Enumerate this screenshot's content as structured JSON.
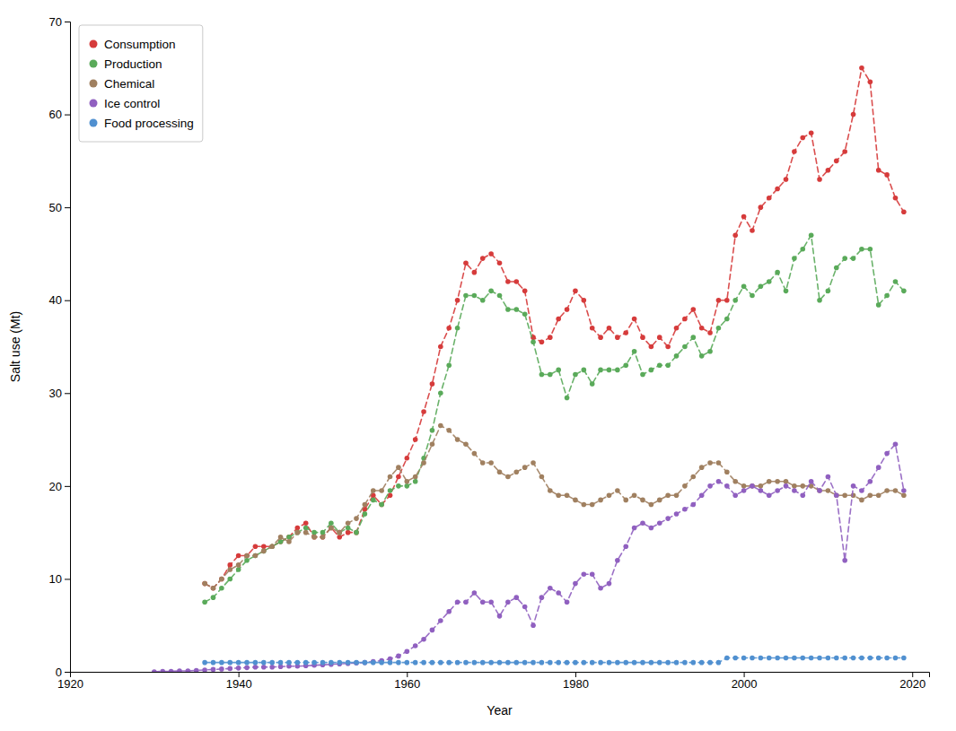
{
  "chart_data": {
    "type": "line",
    "xlabel": "Year",
    "ylabel": "Salt use (Mt)",
    "xlim": [
      1920,
      2022
    ],
    "ylim": [
      0,
      70
    ],
    "xticks": [
      1920,
      1940,
      1960,
      1980,
      2000,
      2020
    ],
    "yticks": [
      0,
      10,
      20,
      30,
      40,
      50,
      60,
      70
    ],
    "grid": false,
    "legend": "upper left",
    "marker": "circle",
    "line_style": "dashed",
    "series": [
      {
        "name": "Consumption",
        "color": "#d63b3b",
        "x": [
          1936,
          1937,
          1938,
          1939,
          1940,
          1941,
          1942,
          1943,
          1944,
          1945,
          1946,
          1947,
          1948,
          1949,
          1950,
          1951,
          1952,
          1953,
          1954,
          1955,
          1956,
          1957,
          1958,
          1959,
          1960,
          1961,
          1962,
          1963,
          1964,
          1965,
          1966,
          1967,
          1968,
          1969,
          1970,
          1971,
          1972,
          1973,
          1974,
          1975,
          1976,
          1977,
          1978,
          1979,
          1980,
          1981,
          1982,
          1983,
          1984,
          1985,
          1986,
          1987,
          1988,
          1989,
          1990,
          1991,
          1992,
          1993,
          1994,
          1995,
          1996,
          1997,
          1998,
          1999,
          2000,
          2001,
          2002,
          2003,
          2004,
          2005,
          2006,
          2007,
          2008,
          2009,
          2010,
          2011,
          2012,
          2013,
          2014,
          2015,
          2016,
          2017,
          2018,
          2019
        ],
        "values": [
          9.5,
          9.0,
          10.0,
          11.5,
          12.5,
          12.5,
          13.5,
          13.5,
          13.5,
          14.0,
          14.5,
          15.5,
          16.0,
          14.5,
          14.5,
          15.5,
          14.5,
          15.0,
          15.0,
          17.5,
          19.0,
          18.0,
          19.0,
          21.0,
          23.0,
          25.0,
          28.0,
          31.0,
          35.0,
          37.0,
          40.0,
          44.0,
          43.0,
          44.5,
          45.0,
          44.0,
          42.0,
          42.0,
          41.0,
          36.0,
          35.5,
          36.0,
          38.0,
          39.0,
          41.0,
          40.0,
          37.0,
          36.0,
          37.0,
          36.0,
          36.5,
          38.0,
          36.0,
          35.0,
          36.0,
          35.0,
          37.0,
          38.0,
          39.0,
          37.0,
          36.5,
          40.0,
          40.0,
          47.0,
          49.0,
          47.5,
          50.0,
          51.0,
          52.0,
          53.0,
          56.0,
          57.5,
          58.0,
          53.0,
          54.0,
          55.0,
          56.0,
          60.0,
          65.0,
          63.5,
          54.0,
          53.5,
          51.0,
          49.5
        ]
      },
      {
        "name": "Production",
        "color": "#5aaa5a",
        "x": [
          1936,
          1937,
          1938,
          1939,
          1940,
          1941,
          1942,
          1943,
          1944,
          1945,
          1946,
          1947,
          1948,
          1949,
          1950,
          1951,
          1952,
          1953,
          1954,
          1955,
          1956,
          1957,
          1958,
          1959,
          1960,
          1961,
          1962,
          1963,
          1964,
          1965,
          1966,
          1967,
          1968,
          1969,
          1970,
          1971,
          1972,
          1973,
          1974,
          1975,
          1976,
          1977,
          1978,
          1979,
          1980,
          1981,
          1982,
          1983,
          1984,
          1985,
          1986,
          1987,
          1988,
          1989,
          1990,
          1991,
          1992,
          1993,
          1994,
          1995,
          1996,
          1997,
          1998,
          1999,
          2000,
          2001,
          2002,
          2003,
          2004,
          2005,
          2006,
          2007,
          2008,
          2009,
          2010,
          2011,
          2012,
          2013,
          2014,
          2015,
          2016,
          2017,
          2018,
          2019
        ],
        "values": [
          7.5,
          8.0,
          9.0,
          10.0,
          11.0,
          12.0,
          12.5,
          13.0,
          13.5,
          14.0,
          14.5,
          15.0,
          15.5,
          15.0,
          15.0,
          16.0,
          15.0,
          15.5,
          15.0,
          17.0,
          18.5,
          18.0,
          19.5,
          20.0,
          20.0,
          20.5,
          23.0,
          26.0,
          30.0,
          33.0,
          37.0,
          40.5,
          40.5,
          40.0,
          41.0,
          40.5,
          39.0,
          39.0,
          38.5,
          35.5,
          32.0,
          32.0,
          32.5,
          29.5,
          32.0,
          32.5,
          31.0,
          32.5,
          32.5,
          32.5,
          33.0,
          34.5,
          32.0,
          32.5,
          33.0,
          33.0,
          34.0,
          35.0,
          36.0,
          34.0,
          34.5,
          37.0,
          38.0,
          40.0,
          41.5,
          40.5,
          41.5,
          42.0,
          43.0,
          41.0,
          44.5,
          45.5,
          47.0,
          40.0,
          41.0,
          43.5,
          44.5,
          44.5,
          45.5,
          45.5,
          39.5,
          40.5,
          42.0,
          41.0
        ]
      },
      {
        "name": "Chemical",
        "color": "#a08060",
        "x": [
          1936,
          1937,
          1938,
          1939,
          1940,
          1941,
          1942,
          1943,
          1944,
          1945,
          1946,
          1947,
          1948,
          1949,
          1950,
          1951,
          1952,
          1953,
          1954,
          1955,
          1956,
          1957,
          1958,
          1959,
          1960,
          1961,
          1962,
          1963,
          1964,
          1965,
          1966,
          1967,
          1968,
          1969,
          1970,
          1971,
          1972,
          1973,
          1974,
          1975,
          1976,
          1977,
          1978,
          1979,
          1980,
          1981,
          1982,
          1983,
          1984,
          1985,
          1986,
          1987,
          1988,
          1989,
          1990,
          1991,
          1992,
          1993,
          1994,
          1995,
          1996,
          1997,
          1998,
          1999,
          2000,
          2001,
          2002,
          2003,
          2004,
          2005,
          2006,
          2007,
          2008,
          2009,
          2010,
          2011,
          2012,
          2013,
          2014,
          2015,
          2016,
          2017,
          2018,
          2019
        ],
        "values": [
          9.5,
          9.0,
          10.0,
          11.0,
          11.5,
          12.5,
          12.5,
          13.0,
          13.5,
          14.5,
          14.0,
          15.0,
          15.0,
          14.5,
          14.5,
          15.5,
          15.0,
          16.0,
          16.5,
          18.0,
          19.5,
          19.5,
          21.0,
          22.0,
          20.5,
          21.0,
          22.5,
          24.5,
          26.5,
          26.0,
          25.0,
          24.5,
          23.5,
          22.5,
          22.5,
          21.5,
          21.0,
          21.5,
          22.0,
          22.5,
          21.0,
          19.5,
          19.0,
          19.0,
          18.5,
          18.0,
          18.0,
          18.5,
          19.0,
          19.5,
          18.5,
          19.0,
          18.5,
          18.0,
          18.5,
          19.0,
          19.0,
          20.0,
          21.0,
          22.0,
          22.5,
          22.5,
          21.5,
          20.5,
          20.0,
          20.0,
          20.0,
          20.5,
          20.5,
          20.5,
          20.0,
          20.0,
          20.0,
          19.5,
          19.5,
          19.0,
          19.0,
          19.0,
          18.5,
          19.0,
          19.0,
          19.5,
          19.5,
          19.0
        ]
      },
      {
        "name": "Ice control",
        "color": "#9060c0",
        "x": [
          1930,
          1931,
          1932,
          1933,
          1934,
          1935,
          1936,
          1937,
          1938,
          1939,
          1940,
          1941,
          1942,
          1943,
          1944,
          1945,
          1946,
          1947,
          1948,
          1949,
          1950,
          1951,
          1952,
          1953,
          1954,
          1955,
          1956,
          1957,
          1958,
          1959,
          1960,
          1961,
          1962,
          1963,
          1964,
          1965,
          1966,
          1967,
          1968,
          1969,
          1970,
          1971,
          1972,
          1973,
          1974,
          1975,
          1976,
          1977,
          1978,
          1979,
          1980,
          1981,
          1982,
          1983,
          1984,
          1985,
          1986,
          1987,
          1988,
          1989,
          1990,
          1991,
          1992,
          1993,
          1994,
          1995,
          1996,
          1997,
          1998,
          1999,
          2000,
          2001,
          2002,
          2003,
          2004,
          2005,
          2006,
          2007,
          2008,
          2009,
          2010,
          2011,
          2012,
          2013,
          2014,
          2015,
          2016,
          2017,
          2018,
          2019
        ],
        "values": [
          0.0,
          0.05,
          0.05,
          0.1,
          0.1,
          0.15,
          0.2,
          0.25,
          0.3,
          0.35,
          0.4,
          0.45,
          0.5,
          0.5,
          0.5,
          0.55,
          0.6,
          0.6,
          0.65,
          0.7,
          0.75,
          0.8,
          0.85,
          0.9,
          0.95,
          1.0,
          1.1,
          1.2,
          1.4,
          1.7,
          2.2,
          2.8,
          3.5,
          4.5,
          5.5,
          6.5,
          7.5,
          7.5,
          8.5,
          7.5,
          7.5,
          6.0,
          7.5,
          8.0,
          7.0,
          5.0,
          8.0,
          9.0,
          8.5,
          7.5,
          9.5,
          10.5,
          10.5,
          9.0,
          9.5,
          12.0,
          13.5,
          15.5,
          16.0,
          15.5,
          16.0,
          16.5,
          17.0,
          17.5,
          18.0,
          19.0,
          20.0,
          20.5,
          20.0,
          19.0,
          19.5,
          20.0,
          19.5,
          19.0,
          19.5,
          20.0,
          19.5,
          19.0,
          20.5,
          19.5,
          21.0,
          19.0,
          12.0,
          20.0,
          19.5,
          20.5,
          22.0,
          23.5,
          24.5,
          19.5
        ]
      },
      {
        "name": "Food processing",
        "color": "#5090d0",
        "x": [
          1936,
          1937,
          1938,
          1939,
          1940,
          1941,
          1942,
          1943,
          1944,
          1945,
          1946,
          1947,
          1948,
          1949,
          1950,
          1951,
          1952,
          1953,
          1954,
          1955,
          1956,
          1957,
          1958,
          1959,
          1960,
          1961,
          1962,
          1963,
          1964,
          1965,
          1966,
          1967,
          1968,
          1969,
          1970,
          1971,
          1972,
          1973,
          1974,
          1975,
          1976,
          1977,
          1978,
          1979,
          1980,
          1981,
          1982,
          1983,
          1984,
          1985,
          1986,
          1987,
          1988,
          1989,
          1990,
          1991,
          1992,
          1993,
          1994,
          1995,
          1996,
          1997,
          1998,
          1999,
          2000,
          2001,
          2002,
          2003,
          2004,
          2005,
          2006,
          2007,
          2008,
          2009,
          2010,
          2011,
          2012,
          2013,
          2014,
          2015,
          2016,
          2017,
          2018,
          2019
        ],
        "values": [
          1.0,
          1.0,
          1.0,
          1.0,
          1.0,
          1.0,
          1.0,
          1.0,
          1.0,
          1.0,
          1.0,
          1.0,
          1.0,
          1.0,
          1.0,
          1.0,
          1.0,
          1.0,
          1.0,
          1.0,
          1.0,
          1.0,
          1.0,
          1.0,
          1.0,
          1.0,
          1.0,
          1.0,
          1.0,
          1.0,
          1.0,
          1.0,
          1.0,
          1.0,
          1.0,
          1.0,
          1.0,
          1.0,
          1.0,
          1.0,
          1.0,
          1.0,
          1.0,
          1.0,
          1.0,
          1.0,
          1.0,
          1.0,
          1.0,
          1.0,
          1.0,
          1.0,
          1.0,
          1.0,
          1.0,
          1.0,
          1.0,
          1.0,
          1.0,
          1.0,
          1.0,
          1.0,
          1.5,
          1.5,
          1.5,
          1.5,
          1.5,
          1.5,
          1.5,
          1.5,
          1.5,
          1.5,
          1.5,
          1.5,
          1.5,
          1.5,
          1.5,
          1.5,
          1.5,
          1.5,
          1.5,
          1.5,
          1.5,
          1.5
        ]
      }
    ]
  }
}
